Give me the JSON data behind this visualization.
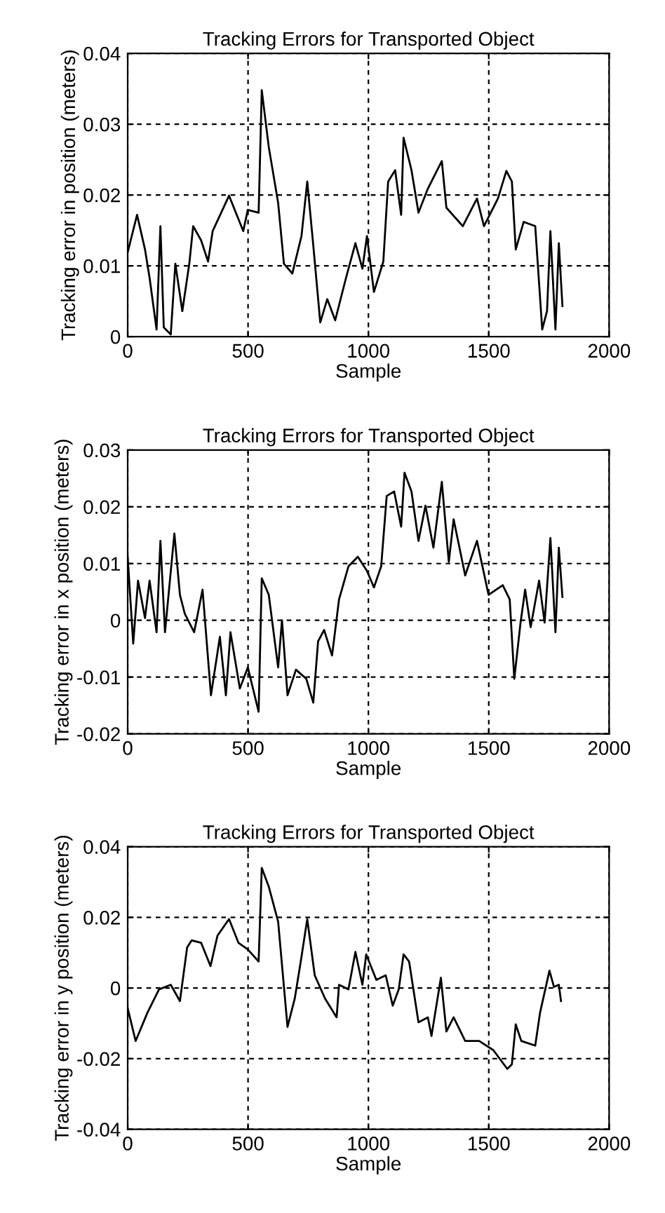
{
  "chart_data": [
    {
      "type": "line",
      "title": "Tracking Errors for Transported Object",
      "xlabel": "Sample",
      "ylabel": "Tracking error in position (meters)",
      "xlim": [
        0,
        2000
      ],
      "xticks": [
        0,
        500,
        1000,
        1500,
        2000
      ],
      "ylim": [
        0,
        0.04
      ],
      "yticks": [
        0,
        0.01,
        0.02,
        0.03,
        0.04
      ],
      "grid": true,
      "line_style": "solid",
      "marker": "none",
      "series": [
        {
          "color": "#000000",
          "x": [
            0,
            39,
            72,
            91,
            120,
            136,
            150,
            179,
            198,
            227,
            256,
            272,
            305,
            334,
            353,
            421,
            480,
            499,
            544,
            557,
            586,
            625,
            649,
            684,
            722,
            746,
            771,
            800,
            829,
            862,
            907,
            946,
            975,
            994,
            1023,
            1062,
            1082,
            1111,
            1136,
            1146,
            1179,
            1208,
            1247,
            1305,
            1324,
            1392,
            1451,
            1480,
            1538,
            1573,
            1596,
            1612,
            1645,
            1693,
            1722,
            1742,
            1756,
            1777,
            1791,
            1806
          ],
          "values": [
            0.0119,
            0.0172,
            0.0123,
            0.0083,
            0.001,
            0.0156,
            0.0013,
            0.0003,
            0.0103,
            0.0036,
            0.0103,
            0.0156,
            0.0136,
            0.0106,
            0.0149,
            0.0199,
            0.0149,
            0.0179,
            0.0175,
            0.0348,
            0.0268,
            0.0189,
            0.0103,
            0.0089,
            0.0142,
            0.0219,
            0.0129,
            0.002,
            0.0053,
            0.0023,
            0.0083,
            0.0132,
            0.0096,
            0.0142,
            0.0063,
            0.0106,
            0.0219,
            0.0235,
            0.0172,
            0.0281,
            0.0235,
            0.0175,
            0.0209,
            0.0248,
            0.0182,
            0.0156,
            0.0195,
            0.0156,
            0.0195,
            0.0234,
            0.0219,
            0.0123,
            0.0162,
            0.0156,
            0.001,
            0.0036,
            0.0149,
            0.001,
            0.0132,
            0.0043
          ]
        }
      ]
    },
    {
      "type": "line",
      "title": "Tracking Errors for Transported Object",
      "xlabel": "Sample",
      "ylabel": "Tracking error in x position (meters)",
      "xlim": [
        0,
        2000
      ],
      "xticks": [
        0,
        500,
        1000,
        1500,
        2000
      ],
      "ylim": [
        -0.02,
        0.03
      ],
      "yticks": [
        -0.02,
        -0.01,
        0,
        0.01,
        0.02,
        0.03
      ],
      "grid": true,
      "line_style": "solid",
      "marker": "none",
      "series": [
        {
          "color": "#000000",
          "x": [
            0,
            23,
            43,
            72,
            91,
            120,
            136,
            155,
            194,
            217,
            237,
            276,
            311,
            346,
            383,
            408,
            427,
            466,
            499,
            544,
            557,
            586,
            625,
            641,
            664,
            699,
            742,
            771,
            791,
            816,
            849,
            878,
            917,
            956,
            994,
            1023,
            1053,
            1076,
            1107,
            1136,
            1150,
            1179,
            1208,
            1237,
            1270,
            1305,
            1334,
            1354,
            1402,
            1451,
            1499,
            1558,
            1587,
            1606,
            1632,
            1651,
            1674,
            1709,
            1732,
            1756,
            1777,
            1791,
            1806
          ],
          "values": [
            0.0112,
            -0.0041,
            0.007,
            0.0004,
            0.007,
            -0.0021,
            0.014,
            -0.0021,
            0.0153,
            0.0045,
            0.0012,
            -0.0021,
            0.0054,
            -0.0132,
            -0.0029,
            -0.0132,
            -0.0021,
            -0.012,
            -0.0083,
            -0.0161,
            0.0074,
            0.0045,
            -0.0083,
            0,
            -0.0132,
            -0.0087,
            -0.0103,
            -0.0145,
            -0.0037,
            -0.0017,
            -0.0062,
            0.0037,
            0.0095,
            0.0112,
            0.0087,
            0.0058,
            0.0095,
            0.0219,
            0.0227,
            0.0165,
            0.026,
            0.0227,
            0.014,
            0.0202,
            0.0128,
            0.0244,
            0.0103,
            0.0178,
            0.0079,
            0.014,
            0.0045,
            0.0062,
            0.0037,
            -0.0103,
            -0.0004,
            0.0054,
            -0.0012,
            0.007,
            -0.0004,
            0.0145,
            -0.0021,
            0.0128,
            0.0041
          ]
        }
      ]
    },
    {
      "type": "line",
      "title": "Tracking Errors for Transported Object",
      "xlabel": "Sample",
      "ylabel": "Tracking error in y position (meters)",
      "xlim": [
        0,
        2000
      ],
      "xticks": [
        0,
        500,
        1000,
        1500,
        2000
      ],
      "ylim": [
        -0.04,
        0.04
      ],
      "yticks": [
        -0.04,
        -0.02,
        0,
        0.02,
        0.04
      ],
      "grid": true,
      "line_style": "solid",
      "marker": "none",
      "series": [
        {
          "color": "#000000",
          "x": [
            0,
            33,
            82,
            130,
            179,
            217,
            247,
            266,
            305,
            344,
            373,
            421,
            460,
            499,
            544,
            557,
            586,
            625,
            664,
            694,
            719,
            746,
            777,
            820,
            868,
            878,
            917,
            946,
            975,
            991,
            1033,
            1072,
            1101,
            1126,
            1146,
            1169,
            1208,
            1247,
            1262,
            1301,
            1324,
            1354,
            1402,
            1460,
            1519,
            1577,
            1596,
            1612,
            1635,
            1693,
            1713,
            1752,
            1771,
            1791,
            1800
          ],
          "values": [
            -0.0057,
            -0.015,
            -0.007,
            -0.0004,
            0.0009,
            -0.0037,
            0.0115,
            0.0135,
            0.0128,
            0.0062,
            0.0148,
            0.0195,
            0.0128,
            0.0109,
            0.0075,
            0.034,
            0.0287,
            0.0188,
            -0.011,
            -0.003,
            0.0075,
            0.0195,
            0.0036,
            -0.003,
            -0.0083,
            0.0009,
            -0.0004,
            0.0102,
            0.0009,
            0.0095,
            0.0023,
            0.0036,
            -0.005,
            -0.0004,
            0.0095,
            0.0075,
            -0.0097,
            -0.0083,
            -0.0136,
            0.0029,
            -0.0123,
            -0.0083,
            -0.015,
            -0.015,
            -0.0176,
            -0.0229,
            -0.0216,
            -0.0103,
            -0.015,
            -0.0163,
            -0.007,
            0.0049,
            0.0003,
            0.0009,
            -0.0037
          ]
        }
      ]
    }
  ]
}
